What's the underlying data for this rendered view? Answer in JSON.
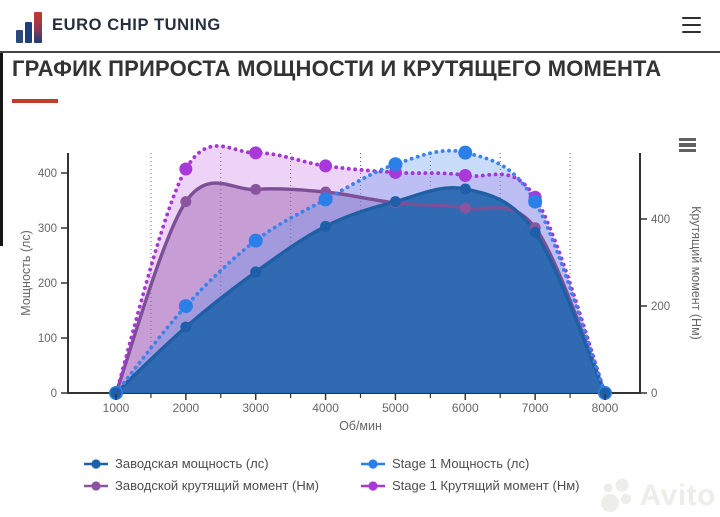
{
  "header": {
    "brand": "EURO CHIP TUNING",
    "logo_icon": "bar-chart-logo-icon",
    "menu_icon": "hamburger-icon"
  },
  "page": {
    "title": "ГРАФИК ПРИРОСТА МОЩНОСТИ И КРУТЯЩЕГО МОМЕНТА",
    "accent_color": "#c23c2e"
  },
  "chart_menu_icon": "context-menu-icon",
  "chart_data": {
    "type": "line",
    "x": [
      1000,
      2000,
      3000,
      4000,
      5000,
      6000,
      7000,
      8000
    ],
    "xlabel": "Об/мин",
    "x_minor_gridlines": [
      1500,
      2500,
      3500,
      4500,
      5500,
      6500,
      7500
    ],
    "grid": "vertical-dotted-only",
    "axes": {
      "left": {
        "label": "Мощность (лс)",
        "ticks": [
          0,
          100,
          200,
          300,
          400
        ],
        "max": 436
      },
      "right": {
        "label": "Крутящий момент (Нм)",
        "ticks": [
          0,
          200,
          400
        ],
        "max": 552
      }
    },
    "series": [
      {
        "name": "Заводская мощность (лс)",
        "axis": "left",
        "line": "solid",
        "color": "#1f5fa6",
        "marker_color": "#1e5fa9",
        "fill": "rgba(38,102,175,0.93)",
        "marker_radius": 5.5,
        "values": [
          0,
          120,
          220,
          303,
          348,
          371,
          292,
          0
        ]
      },
      {
        "name": "Заводской крутящий момент (Нм)",
        "axis": "right",
        "line": "solid",
        "color": "#7d4f96",
        "marker_color": "#8a559e",
        "fill": "rgba(146,84,170,0.42)",
        "marker_radius": 5.5,
        "values": [
          0,
          440,
          468,
          462,
          437,
          425,
          380,
          0
        ]
      },
      {
        "name": "Stage 1 Мощность (лс)",
        "axis": "left",
        "line": "dotted",
        "color": "#3b82ec",
        "marker_color": "#2b7fe8",
        "fill": "rgba(90,150,240,0.33)",
        "marker_radius": 7,
        "values": [
          0,
          158,
          277,
          352,
          416,
          437,
          348,
          0
        ]
      },
      {
        "name": "Stage 1 Крутящий момент (Нм)",
        "axis": "right",
        "line": "dotted",
        "color": "#a535d6",
        "marker_color": "#a838d8",
        "fill": "rgba(197,108,222,0.3)",
        "marker_radius": 6.5,
        "values": [
          0,
          515,
          552,
          522,
          507,
          500,
          450,
          0
        ]
      }
    ],
    "legend_position": "bottom-two-columns"
  },
  "watermark": {
    "text": "Avito",
    "logo_icon": "avito-circles-icon"
  }
}
